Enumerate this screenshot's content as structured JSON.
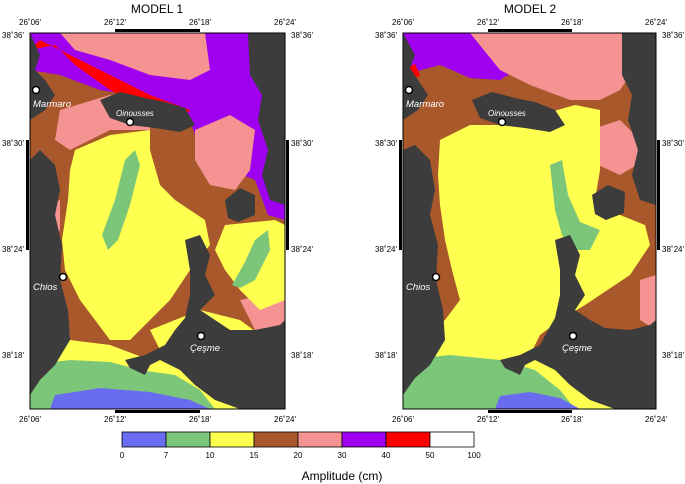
{
  "maps": [
    {
      "title": "MODEL 1",
      "top_ticks": [
        "26˚06'",
        "26˚12'",
        "26˚18'",
        "26˚24'"
      ],
      "bottom_ticks": [
        "26˚06'",
        "26˚12'",
        "26˚18'",
        "26˚24'"
      ],
      "left_ticks": [
        "38˚36'",
        "38˚30'",
        "38˚24'",
        "38˚18'"
      ],
      "right_ticks": [
        "38˚36'",
        "38˚30'",
        "38˚24'",
        "38˚18'"
      ],
      "places": [
        "Marmaro",
        "Oinousses",
        "Chios",
        "Çeşme"
      ]
    },
    {
      "title": "MODEL 2",
      "top_ticks": [
        "26˚06'",
        "26˚12'",
        "26˚18'",
        "26˚24'"
      ],
      "bottom_ticks": [
        "26˚06'",
        "26˚12'",
        "26˚18'",
        "26˚24'"
      ],
      "left_ticks": [
        "38˚36'",
        "38˚30'",
        "38˚24'",
        "38˚18'"
      ],
      "right_ticks": [
        "38˚36'",
        "38˚30'",
        "38˚24'",
        "38˚18'"
      ],
      "places": [
        "Marmaro",
        "Oinousses",
        "Chios",
        "Çeşme"
      ]
    }
  ],
  "legend": {
    "title": "Amplitude (cm)",
    "breaks": [
      "0",
      "7",
      "10",
      "15",
      "20",
      "30",
      "40",
      "50",
      "100"
    ],
    "colors": [
      "#6a6cf0",
      "#7cc67a",
      "#ffff50",
      "#a8582a",
      "#f59393",
      "#a000f0",
      "#ff0000",
      "#ffffff"
    ]
  },
  "colors": {
    "land": "#3c3c3c",
    "blue": "#6a6cf0",
    "green": "#7cc67a",
    "yellow": "#ffff50",
    "brown": "#a8582a",
    "pink": "#f59393",
    "purple": "#a000f0",
    "red": "#ff0000",
    "white": "#ffffff"
  }
}
